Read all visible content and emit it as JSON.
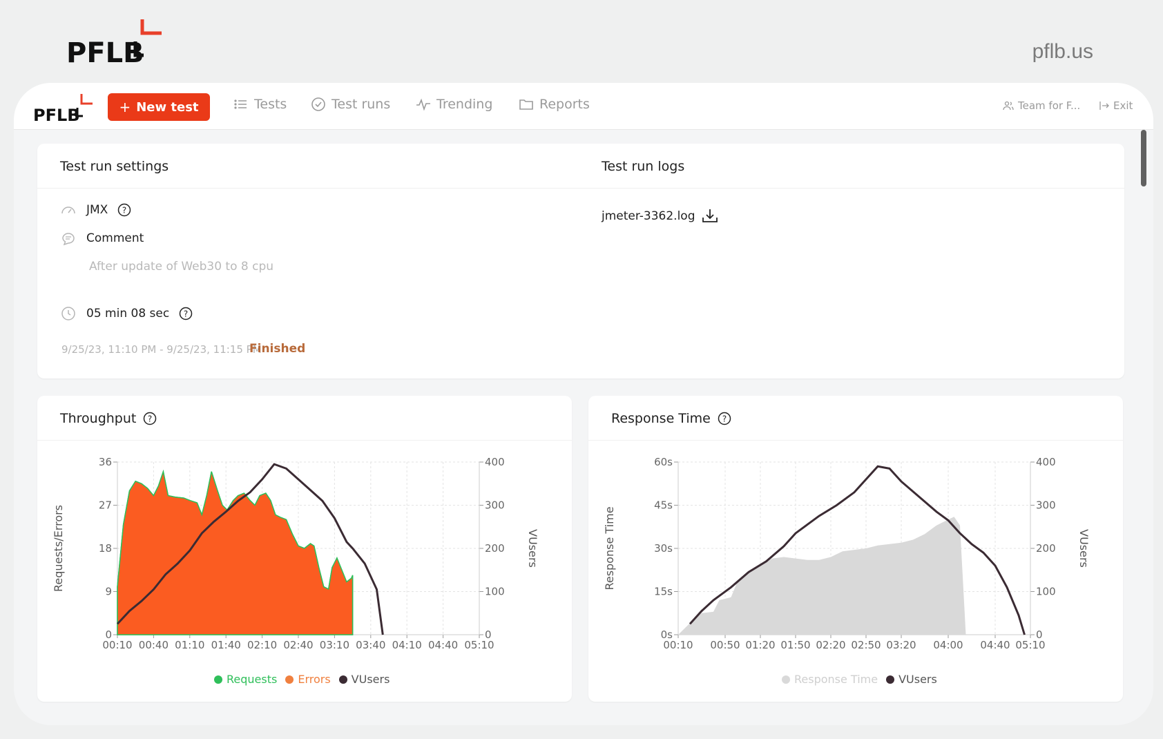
{
  "brand": {
    "logo_text": "PFLB",
    "site": "pflb.us"
  },
  "nav": {
    "logo_text": "PFLB",
    "new_test": "New test",
    "plus": "+",
    "items": [
      {
        "label": "Tests",
        "icon": "list-icon"
      },
      {
        "label": "Test runs",
        "icon": "check-circle-icon"
      },
      {
        "label": "Trending",
        "icon": "pulse-icon"
      },
      {
        "label": "Reports",
        "icon": "folder-icon"
      }
    ],
    "team": "Team for F...",
    "exit": "Exit"
  },
  "settings": {
    "title": "Test run settings",
    "jmx": "JMX",
    "comment_label": "Comment",
    "comment_text": "After update of Web30 to 8 cpu",
    "duration": "05 min 08 sec",
    "date_range": "9/25/23, 11:10 PM - 9/25/23, 11:15 PM",
    "status": "Finished",
    "status_color": "#b86a3a"
  },
  "logs": {
    "title": "Test run logs",
    "file": "jmeter-3362.log"
  },
  "chart_data": [
    {
      "type": "area",
      "title": "Throughput",
      "ylabel": "Requests/Errors",
      "y2label": "VUsers",
      "ylim": [
        0,
        36
      ],
      "y2lim": [
        0,
        400
      ],
      "yticks": [
        "0",
        "9",
        "18",
        "27",
        "36"
      ],
      "y2ticks": [
        "0",
        "100",
        "200",
        "300",
        "400"
      ],
      "xticks": [
        "00:10",
        "00:40",
        "01:10",
        "01:40",
        "02:10",
        "02:40",
        "03:10",
        "03:40",
        "04:10",
        "04:40",
        "05:10"
      ],
      "xlim": [
        10,
        310
      ],
      "grid": true,
      "series": [
        {
          "name": "Requests",
          "color": "#2fbf5a",
          "axis": "left",
          "points": [
            [
              10,
              10
            ],
            [
              15,
              23
            ],
            [
              20,
              30
            ],
            [
              25,
              32
            ],
            [
              30,
              31.5
            ],
            [
              35,
              30.5
            ],
            [
              40,
              29
            ],
            [
              44,
              31
            ],
            [
              48,
              34
            ],
            [
              52,
              29
            ],
            [
              58,
              28.7
            ],
            [
              65,
              28.5
            ],
            [
              70,
              28
            ],
            [
              76,
              27.5
            ],
            [
              80,
              25
            ],
            [
              84,
              29
            ],
            [
              88,
              34
            ],
            [
              93,
              30
            ],
            [
              97,
              27
            ],
            [
              101,
              26
            ],
            [
              106,
              28
            ],
            [
              110,
              29
            ],
            [
              115,
              29.5
            ],
            [
              120,
              28
            ],
            [
              124,
              27
            ],
            [
              128,
              29
            ],
            [
              133,
              29.5
            ],
            [
              137,
              28
            ],
            [
              141,
              25
            ],
            [
              145,
              24.5
            ],
            [
              150,
              24
            ],
            [
              155,
              21
            ],
            [
              160,
              18.5
            ],
            [
              165,
              18
            ],
            [
              170,
              19
            ],
            [
              173,
              18.5
            ],
            [
              177,
              14
            ],
            [
              181,
              10
            ],
            [
              185,
              9.5
            ],
            [
              188,
              14
            ],
            [
              192,
              16
            ],
            [
              196,
              13.5
            ],
            [
              200,
              11
            ],
            [
              204,
              11.8
            ],
            [
              205,
              12.4
            ],
            [
              205,
              0
            ],
            [
              10,
              0
            ]
          ]
        },
        {
          "name": "Errors",
          "color": "#fb5c21",
          "axis": "left",
          "points": [
            [
              10,
              10
            ],
            [
              15,
              23
            ],
            [
              20,
              30
            ],
            [
              25,
              32
            ],
            [
              30,
              31.5
            ],
            [
              35,
              30.5
            ],
            [
              40,
              29
            ],
            [
              44,
              31
            ],
            [
              48,
              34
            ],
            [
              52,
              29
            ],
            [
              58,
              28.7
            ],
            [
              65,
              28.5
            ],
            [
              70,
              28
            ],
            [
              76,
              27.5
            ],
            [
              80,
              25
            ],
            [
              84,
              29
            ],
            [
              88,
              34
            ],
            [
              93,
              30
            ],
            [
              97,
              27
            ],
            [
              101,
              26
            ],
            [
              106,
              28
            ],
            [
              110,
              29
            ],
            [
              115,
              29.5
            ],
            [
              120,
              28
            ],
            [
              124,
              27
            ],
            [
              128,
              29
            ],
            [
              133,
              29.5
            ],
            [
              137,
              28
            ],
            [
              141,
              25
            ],
            [
              145,
              24.5
            ],
            [
              150,
              24
            ],
            [
              155,
              21
            ],
            [
              160,
              18.5
            ],
            [
              165,
              18
            ],
            [
              170,
              19
            ],
            [
              173,
              18.5
            ],
            [
              177,
              14
            ],
            [
              181,
              10
            ],
            [
              185,
              9.5
            ],
            [
              188,
              14
            ],
            [
              192,
              16
            ],
            [
              196,
              13.5
            ],
            [
              200,
              11
            ],
            [
              204,
              11.8
            ],
            [
              205,
              12.4
            ],
            [
              205,
              0
            ],
            [
              10,
              0
            ]
          ]
        },
        {
          "name": "VUsers",
          "color": "#3b2b33",
          "axis": "right",
          "points": [
            [
              10,
              25
            ],
            [
              20,
              55
            ],
            [
              30,
              78
            ],
            [
              40,
              105
            ],
            [
              50,
              140
            ],
            [
              60,
              165
            ],
            [
              70,
              195
            ],
            [
              80,
              235
            ],
            [
              90,
              262
            ],
            [
              100,
              285
            ],
            [
              110,
              310
            ],
            [
              120,
              330
            ],
            [
              130,
              360
            ],
            [
              140,
              395
            ],
            [
              150,
              385
            ],
            [
              160,
              360
            ],
            [
              170,
              335
            ],
            [
              180,
              310
            ],
            [
              190,
              270
            ],
            [
              200,
              215
            ],
            [
              205,
              200
            ],
            [
              215,
              165
            ],
            [
              225,
              105
            ],
            [
              230,
              0
            ]
          ]
        }
      ]
    },
    {
      "type": "area",
      "title": "Response Time",
      "ylabel": "Response Time",
      "y2label": "VUsers",
      "ylim": [
        0,
        60
      ],
      "y2lim": [
        0,
        400
      ],
      "yticks": [
        "0s",
        "15s",
        "30s",
        "45s",
        "60s"
      ],
      "y2ticks": [
        "0",
        "100",
        "200",
        "300",
        "400"
      ],
      "xticks": [
        "00:10",
        "00:50",
        "01:20",
        "01:50",
        "02:20",
        "02:50",
        "03:20",
        "04:00",
        "04:40",
        "05:10"
      ],
      "xtick_values": [
        10,
        50,
        80,
        110,
        140,
        170,
        200,
        240,
        280,
        310
      ],
      "xlim": [
        10,
        310
      ],
      "grid": true,
      "series": [
        {
          "name": "Response Time",
          "color": "#d9d9d9",
          "axis": "left",
          "points": [
            [
              10,
              0
            ],
            [
              20,
              4
            ],
            [
              30,
              7.5
            ],
            [
              40,
              8
            ],
            [
              45,
              12
            ],
            [
              55,
              13
            ],
            [
              60,
              18
            ],
            [
              65,
              20
            ],
            [
              70,
              22
            ],
            [
              80,
              24
            ],
            [
              90,
              26.5
            ],
            [
              100,
              27
            ],
            [
              110,
              26.5
            ],
            [
              120,
              26
            ],
            [
              130,
              26
            ],
            [
              140,
              27
            ],
            [
              150,
              29
            ],
            [
              160,
              29.5
            ],
            [
              170,
              30
            ],
            [
              180,
              31
            ],
            [
              190,
              31.5
            ],
            [
              200,
              32
            ],
            [
              210,
              33
            ],
            [
              220,
              35
            ],
            [
              230,
              38
            ],
            [
              240,
              40
            ],
            [
              245,
              41
            ],
            [
              250,
              38
            ],
            [
              255,
              0
            ]
          ]
        },
        {
          "name": "VUsers",
          "color": "#3b2b33",
          "axis": "right",
          "points": [
            [
              20,
              25
            ],
            [
              30,
              55
            ],
            [
              40,
              80
            ],
            [
              55,
              110
            ],
            [
              70,
              145
            ],
            [
              85,
              170
            ],
            [
              100,
              205
            ],
            [
              110,
              235
            ],
            [
              120,
              255
            ],
            [
              130,
              275
            ],
            [
              145,
              300
            ],
            [
              160,
              330
            ],
            [
              170,
              360
            ],
            [
              180,
              390
            ],
            [
              190,
              385
            ],
            [
              200,
              355
            ],
            [
              215,
              320
            ],
            [
              230,
              285
            ],
            [
              240,
              265
            ],
            [
              250,
              235
            ],
            [
              260,
              210
            ],
            [
              270,
              190
            ],
            [
              280,
              160
            ],
            [
              290,
              110
            ],
            [
              300,
              45
            ],
            [
              305,
              0
            ]
          ]
        }
      ]
    }
  ]
}
